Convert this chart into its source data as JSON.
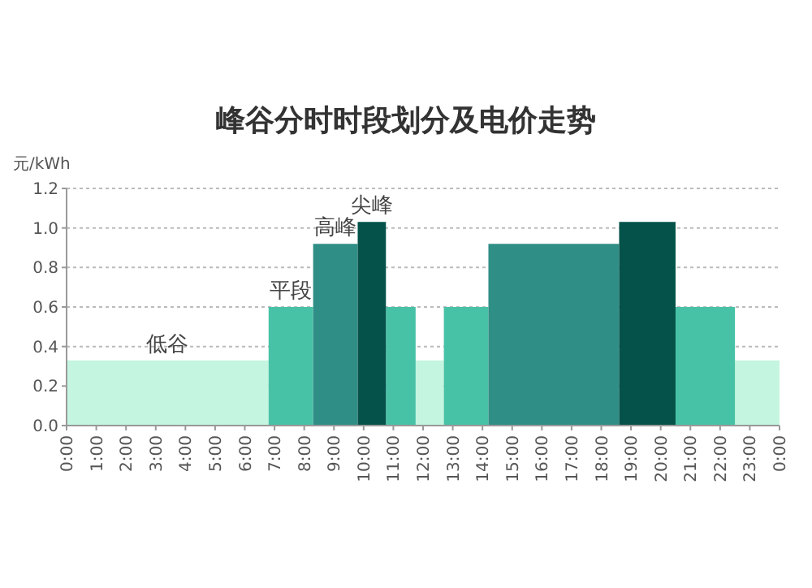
{
  "chart_data": {
    "type": "area",
    "title": "峰谷分时时段划分及电价走势",
    "ylabel": "元/kWh",
    "xlim": [
      0,
      24
    ],
    "ylim": [
      0,
      1.2
    ],
    "xticks": [
      {
        "value": 0,
        "label": "0:00"
      },
      {
        "value": 1,
        "label": "1:00"
      },
      {
        "value": 2,
        "label": "2:00"
      },
      {
        "value": 3,
        "label": "3:00"
      },
      {
        "value": 4,
        "label": "4:00"
      },
      {
        "value": 5,
        "label": "5:00"
      },
      {
        "value": 6,
        "label": "6:00"
      },
      {
        "value": 7,
        "label": "7:00"
      },
      {
        "value": 8,
        "label": "8:00"
      },
      {
        "value": 9,
        "label": "9:00"
      },
      {
        "value": 10,
        "label": "10:00"
      },
      {
        "value": 11,
        "label": "11:00"
      },
      {
        "value": 12,
        "label": "12:00"
      },
      {
        "value": 13,
        "label": "13:00"
      },
      {
        "value": 14,
        "label": "14:00"
      },
      {
        "value": 15,
        "label": "15:00"
      },
      {
        "value": 16,
        "label": "16:00"
      },
      {
        "value": 17,
        "label": "17:00"
      },
      {
        "value": 18,
        "label": "18:00"
      },
      {
        "value": 19,
        "label": "19:00"
      },
      {
        "value": 20,
        "label": "20:00"
      },
      {
        "value": 21,
        "label": "21:00"
      },
      {
        "value": 22,
        "label": "22:00"
      },
      {
        "value": 23,
        "label": "23:00"
      },
      {
        "value": 24,
        "label": "0:00"
      }
    ],
    "yticks": [
      {
        "value": 0,
        "label": "0.0"
      },
      {
        "value": 0.2,
        "label": "0.2"
      },
      {
        "value": 0.4,
        "label": "0.4"
      },
      {
        "value": 0.6,
        "label": "0.6"
      },
      {
        "value": 0.8,
        "label": "0.8"
      },
      {
        "value": 1,
        "label": "1.0"
      },
      {
        "value": 1.2,
        "label": "1.2"
      }
    ],
    "grid": "y",
    "series": [
      {
        "name": "低谷",
        "color": "#c4f5e0",
        "x": [
          0,
          6.8
        ],
        "values": [
          0.33,
          0.33
        ]
      },
      {
        "color": "#c4f5e0",
        "x": [
          11.75,
          12.7
        ],
        "values": [
          0.33,
          0.33
        ]
      },
      {
        "color": "#c4f5e0",
        "x": [
          22.5,
          24
        ],
        "values": [
          0.33,
          0.33
        ]
      },
      {
        "name": "平段",
        "color": "#48c2a6",
        "x": [
          6.8,
          8.3
        ],
        "values": [
          0.6,
          0.6
        ]
      },
      {
        "color": "#48c2a6",
        "x": [
          10.75,
          11.75
        ],
        "values": [
          0.6,
          0.6
        ]
      },
      {
        "color": "#48c2a6",
        "x": [
          12.7,
          14.2
        ],
        "values": [
          0.6,
          0.6
        ]
      },
      {
        "color": "#48c2a6",
        "x": [
          20.5,
          22.5
        ],
        "values": [
          0.6,
          0.6
        ]
      },
      {
        "name": "高峰",
        "color": "#2f8e86",
        "x": [
          8.3,
          9.8
        ],
        "values": [
          0.92,
          0.92
        ]
      },
      {
        "color": "#2f8e86",
        "x": [
          14.2,
          18.6
        ],
        "values": [
          0.92,
          0.92
        ]
      },
      {
        "name": "尖峰",
        "color": "#04524a",
        "x": [
          9.8,
          10.75
        ],
        "values": [
          1.03,
          1.03
        ]
      },
      {
        "color": "#04524a",
        "x": [
          18.6,
          20.5
        ],
        "values": [
          1.03,
          1.03
        ]
      }
    ]
  }
}
